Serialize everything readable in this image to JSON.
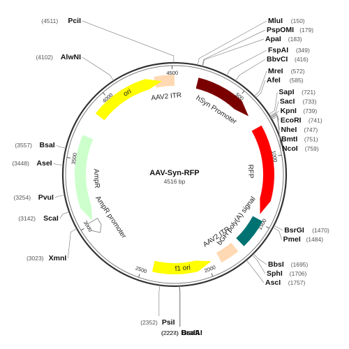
{
  "plasmid": {
    "name": "AAV-Syn-RFP",
    "length": 4516,
    "length_label": "4516 bp"
  },
  "colors": {
    "ring_outer": "#333333",
    "ring_inner": "#888888",
    "orf": "#ffff00",
    "ori_f1": "#ffff00",
    "itr": "#ffd9b3",
    "promoter_hsyn": "#7a0000",
    "rfp": "#ff0000",
    "polya": "#007272",
    "ampr": "#ccffcc",
    "ampr_promoter": "#ffffff"
  },
  "features": [
    {
      "id": "itr-left",
      "label": "AAV2 ITR",
      "start": 4366,
      "end": 4516,
      "strand": 0,
      "color": "#ffd9b3",
      "icon": "box"
    },
    {
      "id": "hsyn-promoter",
      "label": "hSyn Promoter",
      "start": 175,
      "end": 650,
      "strand": 1,
      "color": "#7a0000",
      "icon": "arrow"
    },
    {
      "id": "rfp",
      "label": "RFP",
      "start": 760,
      "end": 1440,
      "strand": 1,
      "color": "#ff0000",
      "icon": "arrow"
    },
    {
      "id": "bgh-polya",
      "label": "bGH poly(A) signal",
      "start": 1480,
      "end": 1705,
      "strand": 0,
      "color": "#007272",
      "icon": "box"
    },
    {
      "id": "itr-right",
      "label": "AAV2 ITR",
      "start": 1760,
      "end": 1905,
      "strand": 0,
      "color": "#ffd9b3",
      "icon": "box"
    },
    {
      "id": "f1-ori",
      "label": "f1 ori",
      "start": 1970,
      "end": 2420,
      "strand": -1,
      "color": "#ffff00",
      "icon": "arrow"
    },
    {
      "id": "ampr-promoter",
      "label": "AmpR promoter",
      "start": 2910,
      "end": 3015,
      "strand": -1,
      "color": "#ffffff",
      "icon": "arrow"
    },
    {
      "id": "ampr",
      "label": "AmpR",
      "start": 3020,
      "end": 3680,
      "strand": -1,
      "color": "#ccffcc",
      "icon": "arrow"
    },
    {
      "id": "ori",
      "label": "ori",
      "start": 3860,
      "end": 4420,
      "strand": 1,
      "color": "#ffff00",
      "icon": "arrow"
    }
  ],
  "ticks": [
    {
      "value": 500,
      "label": "500"
    },
    {
      "value": 1000,
      "label": "1000"
    },
    {
      "value": 1500,
      "label": "1500"
    },
    {
      "value": 2000,
      "label": "2000"
    },
    {
      "value": 2500,
      "label": "2500"
    },
    {
      "value": 3000,
      "label": "3000"
    },
    {
      "value": 3500,
      "label": "3500"
    },
    {
      "value": 4000,
      "label": "4000"
    },
    {
      "value": 4500,
      "label": "4500"
    }
  ],
  "sites": [
    {
      "name": "PciI",
      "position": 4511,
      "pos_label": "(4511)"
    },
    {
      "name": "MluI",
      "position": 150,
      "pos_label": "(150)"
    },
    {
      "name": "PspOMI",
      "position": 179,
      "pos_label": "(179)"
    },
    {
      "name": "ApaI",
      "position": 183,
      "pos_label": "(183)"
    },
    {
      "name": "FspAI",
      "position": 349,
      "pos_label": "(349)"
    },
    {
      "name": "BbvCI",
      "position": 416,
      "pos_label": "(416)"
    },
    {
      "name": "MreI",
      "position": 572,
      "pos_label": "(572)"
    },
    {
      "name": "AfeI",
      "position": 585,
      "pos_label": "(585)"
    },
    {
      "name": "SapI",
      "position": 721,
      "pos_label": "(721)"
    },
    {
      "name": "SacI",
      "position": 733,
      "pos_label": "(733)"
    },
    {
      "name": "KpnI",
      "position": 739,
      "pos_label": "(739)"
    },
    {
      "name": "EcoRI",
      "position": 741,
      "pos_label": "(741)"
    },
    {
      "name": "NheI",
      "position": 747,
      "pos_label": "(747)"
    },
    {
      "name": "BmtI",
      "position": 751,
      "pos_label": "(751)"
    },
    {
      "name": "NcoI",
      "position": 759,
      "pos_label": "(759)"
    },
    {
      "name": "BsrGI",
      "position": 1470,
      "pos_label": "(1470)"
    },
    {
      "name": "PmeI",
      "position": 1484,
      "pos_label": "(1484)"
    },
    {
      "name": "BbsI",
      "position": 1695,
      "pos_label": "(1695)"
    },
    {
      "name": "SphI",
      "position": 1706,
      "pos_label": "(1706)"
    },
    {
      "name": "AscI",
      "position": 1757,
      "pos_label": "(1757)"
    },
    {
      "name": "BsaAI",
      "position": 2224,
      "pos_label": "(2224)"
    },
    {
      "name": "DraIII",
      "position": 2227,
      "pos_label": "(2227)"
    },
    {
      "name": "PsiI",
      "position": 2352,
      "pos_label": "(2352)"
    },
    {
      "name": "XmnI",
      "position": 3023,
      "pos_label": "(3023)"
    },
    {
      "name": "ScaI",
      "position": 3142,
      "pos_label": "(3142)"
    },
    {
      "name": "PvuI",
      "position": 3254,
      "pos_label": "(3254)"
    },
    {
      "name": "AseI",
      "position": 3448,
      "pos_label": "(3448)"
    },
    {
      "name": "BsaI",
      "position": 3557,
      "pos_label": "(3557)"
    },
    {
      "name": "AlwNI",
      "position": 4102,
      "pos_label": "(4102)"
    }
  ]
}
